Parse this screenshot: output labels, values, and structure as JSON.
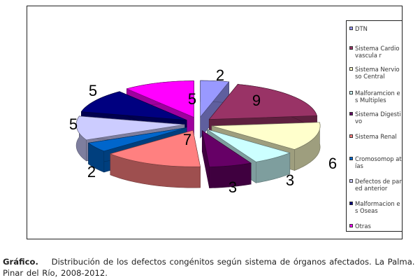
{
  "chart_data": {
    "type": "pie",
    "style": "3d-exploded",
    "categories": [
      "DTN",
      "Sistema Cardiovascular",
      "Sistema Nervioso Central",
      "Malforamciones Multiples",
      "Sistema Digestivo",
      "Sistema Renal",
      "Cromosomopatías",
      "Defectos de pared anterior",
      "Malformaciones Oseas",
      "Otras"
    ],
    "legend_labels": [
      "DTN",
      "Sistema Cardiovasculа r",
      "Sistema Nervioso Central",
      "Malforamcion es Multiples",
      "Sistema Digestivo",
      "Sistema Renal",
      "Cromosomop atías",
      "Defectos de pared anterior",
      "Malformacion es Oseas",
      "Otras"
    ],
    "values": [
      2,
      9,
      6,
      3,
      3,
      7,
      2,
      5,
      5,
      5
    ],
    "display_values": [
      "2",
      "9",
      "6",
      "3",
      "3",
      "7",
      "2",
      "5",
      "5",
      "5"
    ],
    "colors": [
      "#9999ff",
      "#993366",
      "#ffffcc",
      "#ccffff",
      "#660066",
      "#ff8080",
      "#0066cc",
      "#ccccff",
      "#000080",
      "#ff00ff"
    ],
    "legend_placement": "right",
    "title": ""
  },
  "caption": {
    "label": "Gráfico.",
    "text": "Distribución de los defectos congénitos según sistema de órganos afectados. La Palma. Pinar del Río, 2008-2012."
  }
}
